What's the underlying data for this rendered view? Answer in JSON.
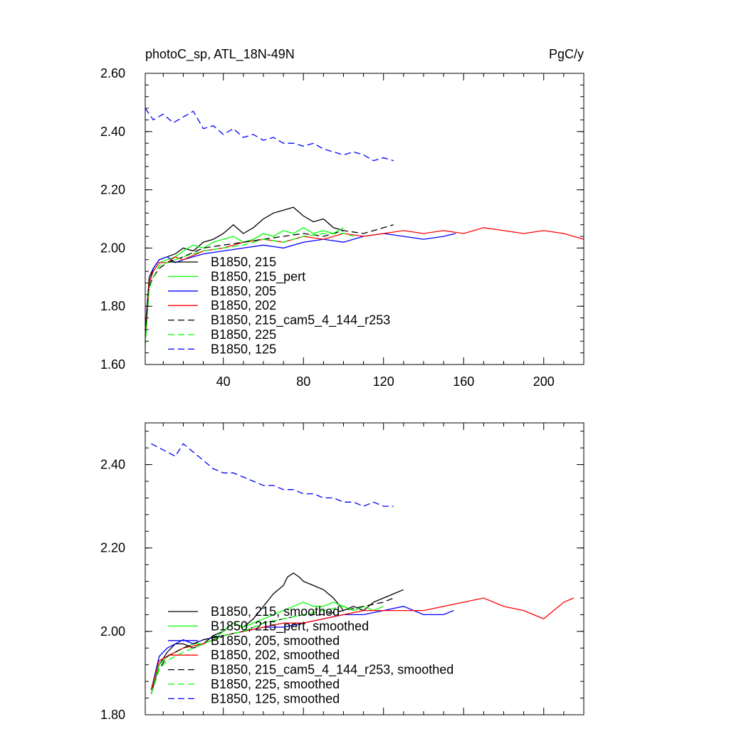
{
  "chart_data": [
    {
      "type": "line",
      "title": "photoC_sp, ATL_18N-49N",
      "units": "PgC/y",
      "xlabel": "",
      "ylabel": "",
      "xlim": [
        1,
        220
      ],
      "ylim": [
        1.6,
        2.6
      ],
      "xticks": [
        40,
        80,
        120,
        160,
        200
      ],
      "xtick_labels": [
        "40",
        "80",
        "120",
        "160",
        "200"
      ],
      "yticks": [
        1.6,
        1.8,
        2.0,
        2.2,
        2.4,
        2.6
      ],
      "ytick_labels": [
        "1.60",
        "1.80",
        "2.00",
        "2.20",
        "2.40",
        "2.60"
      ],
      "legend_position": "left-middle",
      "series": [
        {
          "name": "B1850, 215",
          "color": "#000000",
          "dash": "solid",
          "x": [
            1,
            3,
            5,
            8,
            12,
            16,
            20,
            25,
            30,
            35,
            40,
            45,
            50,
            55,
            60,
            65,
            70,
            75,
            80,
            85,
            90,
            95,
            100
          ],
          "values": [
            1.72,
            1.9,
            1.93,
            1.96,
            1.97,
            1.98,
            2.0,
            1.99,
            2.02,
            2.03,
            2.05,
            2.08,
            2.05,
            2.07,
            2.1,
            2.12,
            2.13,
            2.14,
            2.11,
            2.09,
            2.1,
            2.07,
            2.06
          ]
        },
        {
          "name": "B1850, 215_pert",
          "color": "#00ff00",
          "dash": "solid",
          "x": [
            1,
            3,
            5,
            8,
            12,
            16,
            20,
            25,
            30,
            35,
            40,
            45,
            50,
            55,
            60,
            65,
            70,
            75,
            80,
            85,
            90,
            95,
            100
          ],
          "values": [
            1.68,
            1.88,
            1.92,
            1.95,
            1.96,
            1.97,
            1.99,
            2.01,
            2.0,
            2.02,
            2.03,
            2.04,
            2.02,
            2.03,
            2.05,
            2.04,
            2.06,
            2.05,
            2.07,
            2.05,
            2.06,
            2.05,
            2.07
          ]
        },
        {
          "name": "B1850, 205",
          "color": "#0000ff",
          "dash": "solid",
          "x": [
            1,
            3,
            5,
            8,
            12,
            16,
            20,
            30,
            40,
            50,
            60,
            70,
            80,
            90,
            100,
            110,
            120,
            130,
            140,
            150,
            156
          ],
          "values": [
            1.72,
            1.88,
            1.93,
            1.96,
            1.97,
            1.95,
            1.96,
            1.98,
            1.99,
            2.0,
            2.01,
            2.0,
            2.02,
            2.03,
            2.02,
            2.04,
            2.05,
            2.04,
            2.03,
            2.04,
            2.05
          ]
        },
        {
          "name": "B1850, 202",
          "color": "#ff0000",
          "dash": "solid",
          "x": [
            1,
            3,
            5,
            8,
            12,
            16,
            20,
            30,
            40,
            50,
            60,
            70,
            80,
            90,
            100,
            110,
            120,
            130,
            140,
            150,
            160,
            170,
            180,
            190,
            200,
            210,
            220
          ],
          "values": [
            1.7,
            1.88,
            1.92,
            1.95,
            1.95,
            1.97,
            1.96,
            1.99,
            2.0,
            2.02,
            2.03,
            2.02,
            2.04,
            2.03,
            2.05,
            2.04,
            2.05,
            2.06,
            2.05,
            2.06,
            2.05,
            2.07,
            2.06,
            2.05,
            2.06,
            2.05,
            2.03
          ]
        },
        {
          "name": "B1850, 215_cam5_4_144_r253",
          "color": "#000000",
          "dash": "dashed",
          "x": [
            1,
            3,
            5,
            8,
            12,
            16,
            20,
            30,
            40,
            50,
            60,
            70,
            80,
            90,
            100,
            110,
            120,
            125
          ],
          "values": [
            1.7,
            1.87,
            1.9,
            1.93,
            1.95,
            1.96,
            1.97,
            2.0,
            2.01,
            2.02,
            2.03,
            2.04,
            2.05,
            2.04,
            2.06,
            2.05,
            2.07,
            2.08
          ]
        },
        {
          "name": "B1850, 225",
          "color": "#00ff00",
          "dash": "dashed",
          "x": [
            1,
            3,
            5,
            8,
            12,
            16,
            20,
            30,
            40,
            50,
            60,
            70,
            80,
            90,
            100,
            105
          ],
          "values": [
            1.66,
            1.86,
            1.9,
            1.94,
            1.95,
            1.96,
            1.97,
            1.99,
            2.0,
            2.01,
            2.03,
            2.02,
            2.04,
            2.05,
            2.05,
            2.04
          ]
        },
        {
          "name": "B1850, 125",
          "color": "#0000ff",
          "dash": "dashed",
          "x": [
            1,
            5,
            10,
            15,
            20,
            25,
            30,
            35,
            40,
            45,
            50,
            55,
            60,
            65,
            70,
            75,
            80,
            85,
            90,
            95,
            100,
            105,
            110,
            115,
            120,
            125
          ],
          "values": [
            2.48,
            2.44,
            2.46,
            2.43,
            2.45,
            2.47,
            2.41,
            2.42,
            2.39,
            2.41,
            2.38,
            2.39,
            2.37,
            2.38,
            2.36,
            2.36,
            2.35,
            2.36,
            2.34,
            2.33,
            2.32,
            2.33,
            2.32,
            2.3,
            2.31,
            2.3
          ]
        }
      ]
    },
    {
      "type": "line",
      "title": "",
      "xlabel": "",
      "ylabel": "",
      "xlim": [
        1,
        220
      ],
      "ylim": [
        1.8,
        2.5
      ],
      "xticks": [
        40,
        80,
        120,
        160,
        200
      ],
      "yticks": [
        1.8,
        2.0,
        2.2,
        2.4
      ],
      "ytick_labels": [
        "1.80",
        "2.00",
        "2.20",
        "2.40"
      ],
      "legend_position": "bottom-left",
      "series": [
        {
          "name": "B1850, 215, smoothed",
          "color": "#000000",
          "dash": "solid",
          "x": [
            4,
            8,
            12,
            16,
            20,
            25,
            30,
            35,
            40,
            45,
            50,
            55,
            60,
            65,
            70,
            72,
            75,
            78,
            80,
            85,
            90,
            95,
            100,
            105,
            110,
            115,
            120,
            125,
            130
          ],
          "values": [
            1.85,
            1.92,
            1.95,
            1.97,
            1.97,
            1.96,
            1.97,
            1.99,
            2.0,
            2.02,
            2.01,
            2.03,
            2.06,
            2.09,
            2.11,
            2.13,
            2.14,
            2.13,
            2.12,
            2.11,
            2.1,
            2.08,
            2.05,
            2.06,
            2.05,
            2.07,
            2.08,
            2.09,
            2.1
          ]
        },
        {
          "name": "B1850, 215_pert, smoothed",
          "color": "#00ff00",
          "dash": "solid",
          "x": [
            4,
            8,
            12,
            16,
            20,
            25,
            30,
            35,
            40,
            45,
            50,
            55,
            60,
            65,
            70,
            75,
            80,
            85,
            90,
            95,
            100,
            105,
            110,
            115,
            120
          ],
          "values": [
            1.86,
            1.92,
            1.94,
            1.95,
            1.96,
            1.97,
            1.97,
            1.98,
            2.0,
            2.02,
            2.01,
            2.02,
            2.03,
            2.04,
            2.05,
            2.06,
            2.07,
            2.06,
            2.06,
            2.07,
            2.06,
            2.05,
            2.06,
            2.05,
            2.06
          ]
        },
        {
          "name": "B1850, 205, smoothed",
          "color": "#0000ff",
          "dash": "solid",
          "x": [
            4,
            8,
            12,
            16,
            20,
            25,
            30,
            40,
            50,
            60,
            70,
            80,
            90,
            100,
            110,
            120,
            130,
            140,
            150,
            155
          ],
          "values": [
            1.86,
            1.94,
            1.96,
            1.97,
            1.98,
            1.97,
            1.98,
            1.99,
            2.0,
            2.01,
            2.01,
            2.02,
            2.03,
            2.04,
            2.04,
            2.05,
            2.06,
            2.04,
            2.04,
            2.05
          ]
        },
        {
          "name": "B1850, 202, smoothed",
          "color": "#ff0000",
          "dash": "solid",
          "x": [
            4,
            8,
            12,
            16,
            20,
            30,
            40,
            50,
            60,
            70,
            80,
            90,
            100,
            110,
            120,
            130,
            140,
            150,
            160,
            170,
            180,
            190,
            200,
            210,
            215
          ],
          "values": [
            1.86,
            1.93,
            1.94,
            1.95,
            1.96,
            1.97,
            1.99,
            2.0,
            2.01,
            2.02,
            2.02,
            2.03,
            2.04,
            2.05,
            2.05,
            2.05,
            2.05,
            2.06,
            2.07,
            2.08,
            2.06,
            2.05,
            2.03,
            2.07,
            2.08
          ]
        },
        {
          "name": "B1850, 215_cam5_4_144_r253, smoothed",
          "color": "#000000",
          "dash": "dashed",
          "x": [
            4,
            8,
            12,
            16,
            20,
            30,
            40,
            50,
            60,
            70,
            80,
            90,
            100,
            110,
            120,
            125
          ],
          "values": [
            1.85,
            1.91,
            1.94,
            1.95,
            1.96,
            1.98,
            1.99,
            2.0,
            2.02,
            2.03,
            2.04,
            2.04,
            2.05,
            2.06,
            2.07,
            2.08
          ]
        },
        {
          "name": "B1850, 225, smoothed",
          "color": "#00ff00",
          "dash": "dashed",
          "x": [
            4,
            8,
            12,
            16,
            20,
            30,
            40,
            50,
            60,
            70,
            80,
            90,
            100,
            105
          ],
          "values": [
            1.85,
            1.91,
            1.93,
            1.94,
            1.95,
            1.97,
            1.99,
            2.0,
            2.02,
            2.03,
            2.04,
            2.05,
            2.06,
            2.05
          ]
        },
        {
          "name": "B1850, 125, smoothed",
          "color": "#0000ff",
          "dash": "dashed",
          "x": [
            4,
            8,
            12,
            16,
            20,
            25,
            30,
            35,
            40,
            45,
            50,
            55,
            60,
            65,
            70,
            75,
            80,
            85,
            90,
            95,
            100,
            105,
            110,
            115,
            120,
            125
          ],
          "values": [
            2.45,
            2.44,
            2.43,
            2.42,
            2.45,
            2.43,
            2.41,
            2.39,
            2.38,
            2.38,
            2.37,
            2.36,
            2.35,
            2.35,
            2.34,
            2.34,
            2.33,
            2.33,
            2.32,
            2.32,
            2.31,
            2.31,
            2.3,
            2.31,
            2.3,
            2.3
          ]
        }
      ]
    }
  ]
}
